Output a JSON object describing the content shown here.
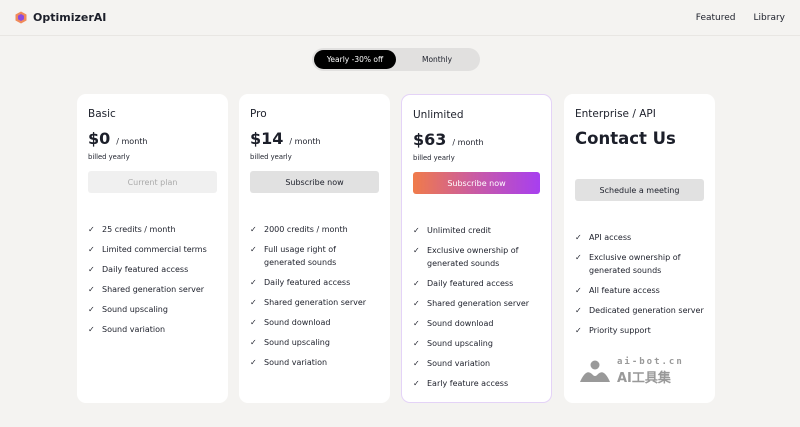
{
  "header": {
    "brand": "OptimizerAI",
    "nav": [
      "Featured",
      "Library"
    ]
  },
  "billing_toggle": {
    "options": [
      "Yearly -30% off",
      "Monthly"
    ],
    "selected": "Yearly -30% off"
  },
  "plans": [
    {
      "name": "Basic",
      "price": "$0",
      "period": "/ month",
      "billed": "billed yearly",
      "button": "Current plan",
      "features": [
        "25 credits / month",
        "Limited commercial terms",
        "Daily featured access",
        "Shared generation server",
        "Sound upscaling",
        "Sound variation"
      ]
    },
    {
      "name": "Pro",
      "price": "$14",
      "period": "/ month",
      "billed": "billed yearly",
      "button": "Subscribe now",
      "features": [
        "2000 credits / month",
        "Full usage right of generated sounds",
        "Daily featured access",
        "Shared generation server",
        "Sound download",
        "Sound upscaling",
        "Sound variation"
      ]
    },
    {
      "name": "Unlimited",
      "price": "$63",
      "period": "/ month",
      "billed": "billed yearly",
      "button": "Subscribe now",
      "features": [
        "Unlimited credit",
        "Exclusive ownership of generated sounds",
        "Daily featured access",
        "Shared generation server",
        "Sound download",
        "Sound upscaling",
        "Sound variation",
        "Early feature access"
      ]
    },
    {
      "name": "Enterprise / API",
      "price": "Contact Us",
      "button": "Schedule a meeting",
      "features": [
        "API access",
        "Exclusive ownership of generated sounds",
        "All feature access",
        "Dedicated generation server",
        "Priority support"
      ]
    }
  ],
  "watermark": {
    "line1": "ai-bot.cn",
    "line2": "AI工具集"
  },
  "colors": {
    "gradient_start": "#f07b4a",
    "gradient_end": "#a73ff0",
    "highlight_border": "#e4d3f7"
  }
}
